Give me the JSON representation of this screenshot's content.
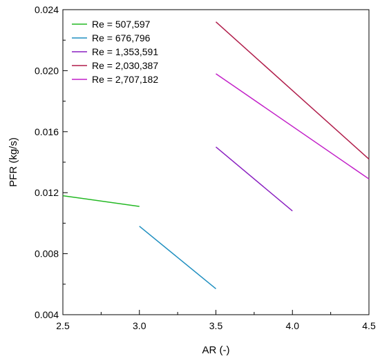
{
  "chart_data": {
    "type": "line",
    "xlabel": "AR (-)",
    "ylabel": "PFR (kg/s)",
    "xlim": [
      2.5,
      4.5
    ],
    "ylim": [
      0.004,
      0.024
    ],
    "xticks": [
      "2.5",
      "3.0",
      "3.5",
      "4.0",
      "4.5"
    ],
    "yticks": [
      "0.004",
      "0.008",
      "0.012",
      "0.016",
      "0.020",
      "0.024"
    ],
    "grid": false,
    "legend_position": "top-left",
    "series": [
      {
        "name": "Re = 507,597",
        "color": "#22b822",
        "x": [
          2.5,
          3.0
        ],
        "y": [
          0.0118,
          0.0111
        ]
      },
      {
        "name": "Re = 676,796",
        "color": "#1f8fc0",
        "x": [
          3.0,
          3.5
        ],
        "y": [
          0.0098,
          0.0057
        ]
      },
      {
        "name": "Re = 1,353,591",
        "color": "#8a1fc0",
        "x": [
          3.5,
          4.0
        ],
        "y": [
          0.015,
          0.0108
        ]
      },
      {
        "name": "Re = 2,030,387",
        "color": "#b01c4a",
        "x": [
          3.5,
          4.5
        ],
        "y": [
          0.0232,
          0.0142
        ]
      },
      {
        "name": "Re = 2,707,182",
        "color": "#c21fc8",
        "x": [
          3.5,
          4.5
        ],
        "y": [
          0.0198,
          0.0129
        ]
      }
    ]
  }
}
